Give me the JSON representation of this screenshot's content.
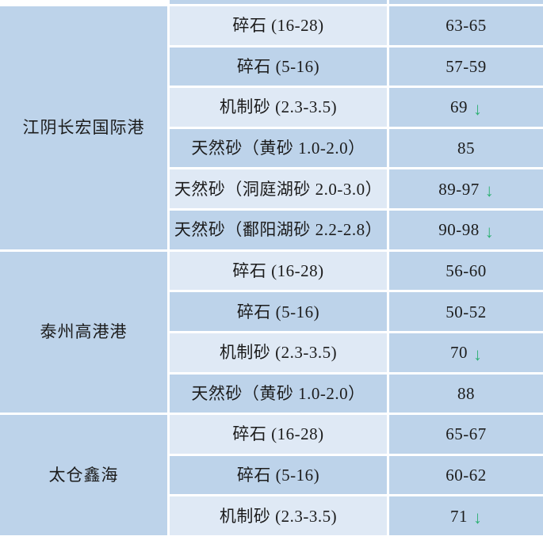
{
  "table": {
    "sections": [
      {
        "port": "江阴长宏国际港",
        "rows": [
          {
            "material": "碎石 (16-28)",
            "price": "63-65",
            "trend": ""
          },
          {
            "material": "碎石 (5-16)",
            "price": "57-59",
            "trend": ""
          },
          {
            "material": "机制砂 (2.3-3.5)",
            "price": "69",
            "trend": "down"
          },
          {
            "material": "天然砂（黄砂 1.0-2.0）",
            "price": "85",
            "trend": ""
          },
          {
            "material": "天然砂（洞庭湖砂 2.0-3.0）",
            "price": "89-97",
            "trend": "down"
          },
          {
            "material": "天然砂（鄱阳湖砂 2.2-2.8）",
            "price": "90-98",
            "trend": "down"
          }
        ]
      },
      {
        "port": "泰州高港港",
        "rows": [
          {
            "material": "碎石 (16-28)",
            "price": "56-60",
            "trend": ""
          },
          {
            "material": "碎石 (5-16)",
            "price": "50-52",
            "trend": ""
          },
          {
            "material": "机制砂 (2.3-3.5)",
            "price": "70",
            "trend": "down"
          },
          {
            "material": "天然砂（黄砂 1.0-2.0）",
            "price": "88",
            "trend": ""
          }
        ]
      },
      {
        "port": "太仓鑫海",
        "rows": [
          {
            "material": "碎石 (16-28)",
            "price": "65-67",
            "trend": ""
          },
          {
            "material": "碎石 (5-16)",
            "price": "60-62",
            "trend": ""
          },
          {
            "material": "机制砂 (2.3-3.5)",
            "price": "71",
            "trend": "down"
          }
        ]
      }
    ]
  },
  "icons": {
    "trend_down": "↓"
  },
  "colors": {
    "cell_medium": "#bdd3ea",
    "cell_light": "#dfe9f5",
    "border_white": "#ffffff",
    "trend_down_green": "#2eb073",
    "text": "#1c1c1c"
  }
}
